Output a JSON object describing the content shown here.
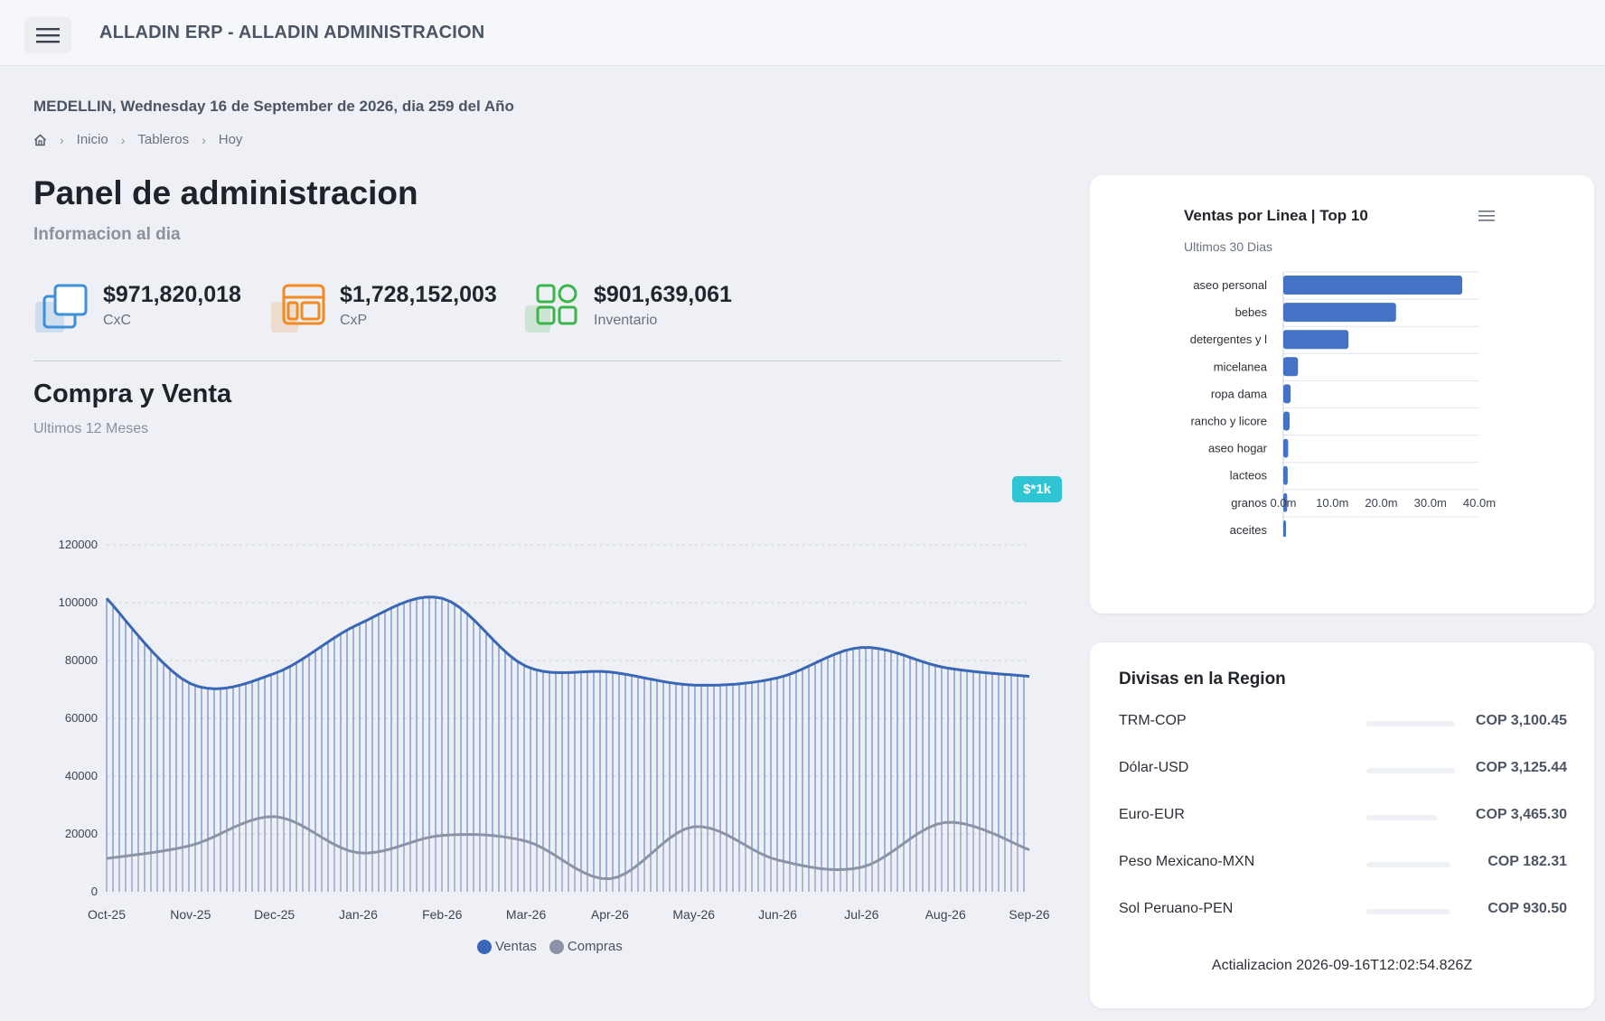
{
  "header": {
    "title": "ALLADIN ERP - ALLADIN ADMINISTRACION",
    "menu_icon": "hamburger-menu-icon"
  },
  "date_line": "MEDELLIN, Wednesday 16 de September de 2026, dia 259 del Año",
  "breadcrumb": {
    "home_icon": "home-icon",
    "items": [
      "Inicio",
      "Tableros",
      "Hoy"
    ]
  },
  "page": {
    "title": "Panel de administracion",
    "subtitle": "Informacion al dia"
  },
  "kpis": [
    {
      "value": "$971,820,018",
      "label": "CxC",
      "icon": "copy-icon",
      "color": "#3d8fd8"
    },
    {
      "value": "$1,728,152,003",
      "label": "CxP",
      "icon": "layout-icon",
      "color": "#f08a24"
    },
    {
      "value": "$901,639,061",
      "label": "Inventario",
      "icon": "apps-grid-icon",
      "color": "#3ab54a"
    }
  ],
  "purchase_sales": {
    "title": "Compra y Venta",
    "subtitle": "Ultimos 12 Meses",
    "unit_badge": "$*1k"
  },
  "colors": {
    "ventas": "#3a67b5",
    "compras": "#8a94a6",
    "bars": "#4472c4",
    "badge": "#2ec4d4"
  },
  "chart_data": [
    {
      "type": "area",
      "x": [
        "Oct-25",
        "Nov-25",
        "Dec-25",
        "Jan-26",
        "Feb-26",
        "Mar-26",
        "Apr-26",
        "May-26",
        "Jun-26",
        "Jul-26",
        "Aug-26",
        "Sep-26"
      ],
      "yticks": [
        0,
        20000,
        40000,
        60000,
        80000,
        100000,
        120000
      ],
      "ylim": [
        0,
        120000
      ],
      "grid": true,
      "legend_position": "bottom",
      "series": [
        {
          "name": "Ventas",
          "values": [
            101500,
            72000,
            75500,
            92500,
            101500,
            78000,
            76000,
            71500,
            74000,
            84500,
            77500,
            74500
          ]
        },
        {
          "name": "Compras",
          "values": [
            11500,
            16000,
            26000,
            13500,
            19500,
            17500,
            4500,
            22500,
            11000,
            8500,
            24000,
            14500
          ]
        }
      ]
    },
    {
      "type": "bar",
      "title": "Ventas por Linea | Top 10",
      "subtitle": "Ultimos 30 Dias",
      "orientation": "horizontal",
      "categories": [
        "aseo personal",
        "bebes",
        "detergentes y l",
        "micelanea",
        "ropa dama",
        "rancho y licore",
        "aseo hogar",
        "lacteos",
        "granos",
        "aceites"
      ],
      "values": [
        36.5,
        23.0,
        13.3,
        3.0,
        1.5,
        1.3,
        1.0,
        0.9,
        0.8,
        0.5
      ],
      "value_unit": "m",
      "xticks": [
        "0.0m",
        "10.0m",
        "20.0m",
        "30.0m",
        "40.0m"
      ],
      "xlim": [
        0,
        40
      ]
    }
  ],
  "currencies": {
    "title": "Divisas en la Region",
    "rows": [
      {
        "name": "TRM-COP",
        "value": "COP 3,100.45",
        "bar_fraction": 1.0
      },
      {
        "name": "Dólar-USD",
        "value": "COP 3,125.44",
        "bar_fraction": 1.0
      },
      {
        "name": "Euro-EUR",
        "value": "COP 3,465.30",
        "bar_fraction": 0.81
      },
      {
        "name": "Peso Mexicano-MXN",
        "value": "COP 182.31",
        "bar_fraction": 0.95
      },
      {
        "name": "Sol Peruano-PEN",
        "value": "COP 930.50",
        "bar_fraction": 0.95
      }
    ],
    "update_text": "Actializacion 2026-09-16T12:02:54.826Z"
  }
}
